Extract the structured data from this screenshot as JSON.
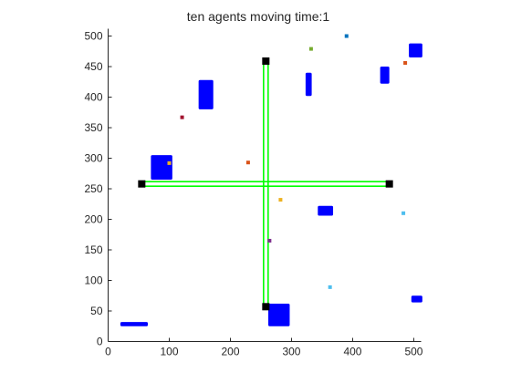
{
  "chart_data": {
    "type": "scatter",
    "title": "ten agents moving time:1",
    "xlabel": "",
    "ylabel": "",
    "xlim": [
      0,
      512
    ],
    "ylim": [
      0,
      512
    ],
    "x_ticks": [
      0,
      100,
      200,
      300,
      400,
      500
    ],
    "y_ticks": [
      0,
      50,
      100,
      150,
      200,
      250,
      300,
      350,
      400,
      450,
      500
    ],
    "grid": false,
    "legend": "none",
    "colors": {
      "axis": "#262626",
      "obstacle": "#0000ff",
      "path": "#00ff00",
      "endpoint": "#000000"
    },
    "obstacles": [
      {
        "x": [
          20,
          65
        ],
        "y": [
          25,
          32
        ]
      },
      {
        "x": [
          70,
          105
        ],
        "y": [
          265,
          305
        ]
      },
      {
        "x": [
          148,
          172
        ],
        "y": [
          380,
          428
        ]
      },
      {
        "x": [
          262,
          297
        ],
        "y": [
          25,
          62
        ]
      },
      {
        "x": [
          323,
          333
        ],
        "y": [
          402,
          440
        ]
      },
      {
        "x": [
          343,
          368
        ],
        "y": [
          206,
          222
        ]
      },
      {
        "x": [
          445,
          460
        ],
        "y": [
          422,
          450
        ]
      },
      {
        "x": [
          492,
          514
        ],
        "y": [
          465,
          488
        ]
      },
      {
        "x": [
          496,
          514
        ],
        "y": [
          64,
          75
        ]
      }
    ],
    "paths": [
      {
        "x": [
          55,
          460
        ],
        "y": [
          258,
          258
        ]
      },
      {
        "x": [
          258,
          258
        ],
        "y": [
          57,
          459
        ]
      }
    ],
    "endpoints": [
      {
        "x": 55,
        "y": 258
      },
      {
        "x": 460,
        "y": 258
      },
      {
        "x": 258,
        "y": 459
      },
      {
        "x": 258,
        "y": 57
      }
    ],
    "agents": [
      {
        "x": 121,
        "y": 367,
        "color": "#a2142f"
      },
      {
        "x": 100,
        "y": 292,
        "color": "#edb120"
      },
      {
        "x": 229,
        "y": 293,
        "color": "#d95319"
      },
      {
        "x": 282,
        "y": 232,
        "color": "#edb120"
      },
      {
        "x": 264,
        "y": 165,
        "color": "#7e2f8e"
      },
      {
        "x": 332,
        "y": 479,
        "color": "#77ac30"
      },
      {
        "x": 390,
        "y": 500,
        "color": "#0072bd"
      },
      {
        "x": 486,
        "y": 456,
        "color": "#d95319"
      },
      {
        "x": 483,
        "y": 210,
        "color": "#4dbeee"
      },
      {
        "x": 363,
        "y": 89,
        "color": "#4dbeee"
      }
    ]
  }
}
